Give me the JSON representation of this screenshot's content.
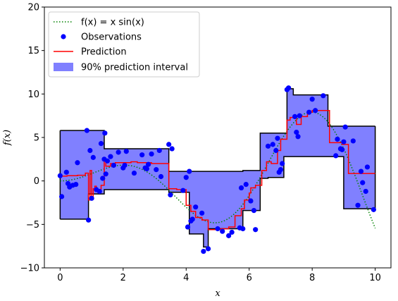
{
  "chart_data": {
    "type": "line",
    "title": "",
    "xlabel": "x",
    "ylabel": "f(x)",
    "xlim": [
      -0.5,
      10.5
    ],
    "ylim": [
      -10,
      20
    ],
    "xticks": [
      0,
      2,
      4,
      6,
      8,
      10
    ],
    "yticks": [
      -10,
      -5,
      0,
      5,
      10,
      15,
      20
    ],
    "xtick_labels": [
      "0",
      "2",
      "4",
      "6",
      "8",
      "10"
    ],
    "ytick_labels": [
      "−10",
      "−5",
      "0",
      "5",
      "10",
      "15",
      "20"
    ],
    "grid": false,
    "legend_position": "upper-left",
    "legend": [
      {
        "label": "f(x) = x sin(x)",
        "style": "dotted-line",
        "color": "#008000"
      },
      {
        "label": "Observations",
        "style": "marker",
        "color": "#0000ff"
      },
      {
        "label": "Prediction",
        "style": "line",
        "color": "#ff0000"
      },
      {
        "label": "90% prediction interval",
        "style": "patch",
        "color": "#8080ff"
      }
    ],
    "true_function": {
      "name": "f(x) = x sin(x)",
      "formula": "x*sin(x)",
      "domain": [
        0,
        10
      ],
      "color": "#008000"
    },
    "upper_bound": {
      "x": [
        0,
        1.4,
        1.4,
        3.45,
        3.45,
        5.8,
        5.8,
        6.35,
        6.35,
        7.2,
        7.2,
        7.4,
        7.4,
        8.5,
        8.5,
        9.0,
        9.0,
        10
      ],
      "y": [
        5.8,
        5.8,
        3.7,
        3.7,
        1.1,
        1.1,
        1.2,
        1.2,
        5.5,
        5.5,
        10.6,
        10.6,
        9.9,
        9.9,
        6.3,
        6.3,
        6.3,
        6.3
      ]
    },
    "lower_bound": {
      "x": [
        0,
        0.9,
        0.9,
        1.4,
        1.4,
        3.45,
        3.45,
        4.1,
        4.1,
        4.55,
        4.55,
        4.7,
        4.7,
        5.8,
        5.8,
        6.35,
        6.35,
        6.6,
        6.6,
        7.1,
        7.1,
        7.5,
        7.5,
        9.0,
        9.0,
        10
      ],
      "y": [
        -4.4,
        -4.4,
        -1.5,
        -1.5,
        -1.0,
        -1.0,
        -1.3,
        -1.3,
        -6.1,
        -6.1,
        -7.6,
        -7.6,
        -5.5,
        -5.5,
        -3.4,
        -3.4,
        0.3,
        0.3,
        0.4,
        0.4,
        2.8,
        2.8,
        2.8,
        2.8,
        -3.2,
        -3.2
      ]
    },
    "prediction": {
      "name": "Prediction",
      "color": "#ff0000",
      "x": [
        0,
        0.22,
        0.22,
        0.55,
        0.55,
        0.8,
        0.8,
        0.9,
        0.9,
        0.95,
        0.95,
        1.0,
        1.0,
        1.05,
        1.05,
        1.1,
        1.1,
        1.15,
        1.15,
        1.3,
        1.3,
        1.4,
        1.4,
        1.45,
        1.45,
        1.6,
        1.6,
        1.75,
        1.75,
        2.25,
        2.25,
        2.45,
        2.45,
        2.9,
        2.9,
        3.45,
        3.45,
        3.55,
        3.55,
        3.7,
        3.7,
        4.0,
        4.0,
        4.15,
        4.15,
        4.3,
        4.3,
        4.5,
        4.5,
        4.7,
        4.7,
        5.1,
        5.1,
        5.35,
        5.35,
        5.55,
        5.55,
        5.75,
        5.75,
        5.85,
        5.85,
        6.0,
        6.0,
        6.05,
        6.05,
        6.2,
        6.2,
        6.4,
        6.4,
        6.55,
        6.55,
        6.7,
        6.7,
        6.9,
        6.9,
        7.0,
        7.0,
        7.2,
        7.2,
        7.3,
        7.3,
        7.5,
        7.5,
        7.65,
        7.65,
        7.85,
        7.85,
        8.0,
        8.0,
        8.55,
        8.55,
        8.95,
        8.95,
        9.15,
        9.15,
        10
      ],
      "y": [
        0.55,
        0.55,
        0.6,
        0.6,
        0.65,
        0.65,
        0.9,
        0.9,
        -2.2,
        -2.2,
        1.2,
        1.2,
        -1.8,
        -1.8,
        -0.9,
        -0.9,
        -0.6,
        -0.6,
        -1.0,
        -1.0,
        -0.5,
        -0.5,
        2.4,
        2.4,
        1.7,
        1.7,
        2.0,
        2.0,
        2.1,
        2.1,
        2.2,
        2.2,
        2.1,
        2.1,
        2.0,
        2.0,
        -0.9,
        -0.9,
        -0.9,
        -0.9,
        -1.0,
        -1.0,
        -2.8,
        -2.8,
        -3.5,
        -3.5,
        -4.2,
        -4.2,
        -4.5,
        -4.5,
        -5.6,
        -5.6,
        -5.5,
        -5.5,
        -5.3,
        -5.3,
        -4.0,
        -4.0,
        -3.2,
        -3.2,
        -2.2,
        -2.2,
        -1.4,
        -1.4,
        -0.8,
        -0.8,
        -0.5,
        -0.5,
        1.2,
        1.2,
        2.2,
        2.2,
        2.0,
        2.0,
        3.5,
        3.5,
        4.8,
        4.8,
        7.0,
        7.0,
        7.3,
        7.3,
        6.5,
        6.5,
        7.4,
        7.4,
        7.9,
        7.9,
        8.1,
        8.1,
        4.4,
        4.4,
        4.2,
        4.2,
        0.85,
        0.85
      ]
    },
    "observations": {
      "name": "Observations",
      "color": "#0000ff",
      "x": [
        0.0,
        0.05,
        0.2,
        0.25,
        0.3,
        0.4,
        0.5,
        0.55,
        0.85,
        0.9,
        0.95,
        1.0,
        1.05,
        1.15,
        1.25,
        1.3,
        1.35,
        1.4,
        1.42,
        1.45,
        1.5,
        1.6,
        1.7,
        1.85,
        2.0,
        2.05,
        2.1,
        2.35,
        2.6,
        2.7,
        2.75,
        2.8,
        2.9,
        3.05,
        3.15,
        3.2,
        3.45,
        3.5,
        3.55,
        3.9,
        4.0,
        4.05,
        4.1,
        4.15,
        4.2,
        4.3,
        4.5,
        4.55,
        4.7,
        5.0,
        5.15,
        5.35,
        5.45,
        5.7,
        5.75,
        5.8,
        5.9,
        6.05,
        6.15,
        6.2,
        6.6,
        6.75,
        6.85,
        6.9,
        6.95,
        7.0,
        7.05,
        7.2,
        7.25,
        7.45,
        7.5,
        7.55,
        7.6,
        7.9,
        8.0,
        8.1,
        8.35,
        8.75,
        8.8,
        8.9,
        8.95,
        9.0,
        9.05,
        9.3,
        9.45,
        9.55,
        9.6,
        9.7,
        9.75,
        9.95
      ],
      "y": [
        0.6,
        -1.8,
        1.0,
        -0.3,
        -0.7,
        -0.5,
        -0.4,
        2.1,
        5.8,
        -4.5,
        3.5,
        -2.0,
        2.7,
        -1.0,
        -1.2,
        4.3,
        0.3,
        2.5,
        5.5,
        0.8,
        2.3,
        2.8,
        1.8,
        3.3,
        1.5,
        1.8,
        3.4,
        0.9,
        3.0,
        1.5,
        1.4,
        1.9,
        3.1,
        1.3,
        3.5,
        0.5,
        4.2,
        -1.6,
        3.7,
        -1.1,
        0.4,
        -5.3,
        1.1,
        -4.6,
        -4.4,
        -3.0,
        -3.7,
        -8.1,
        -7.8,
        -5.5,
        -5.8,
        -6.3,
        -5.9,
        -5.4,
        -0.8,
        -5.5,
        -0.4,
        -2.3,
        -3.4,
        -5.6,
        4.0,
        4.2,
        3.5,
        4.9,
        1.0,
        1.3,
        2.0,
        10.5,
        10.7,
        7.4,
        5.6,
        5.1,
        7.5,
        7.9,
        9.4,
        8.1,
        9.8,
        2.9,
        4.8,
        3.7,
        3.6,
        4.5,
        6.2,
        4.6,
        -2.8,
        1.1,
        -0.2,
        -1.2,
        1.6,
        -3.3
      ]
    }
  }
}
